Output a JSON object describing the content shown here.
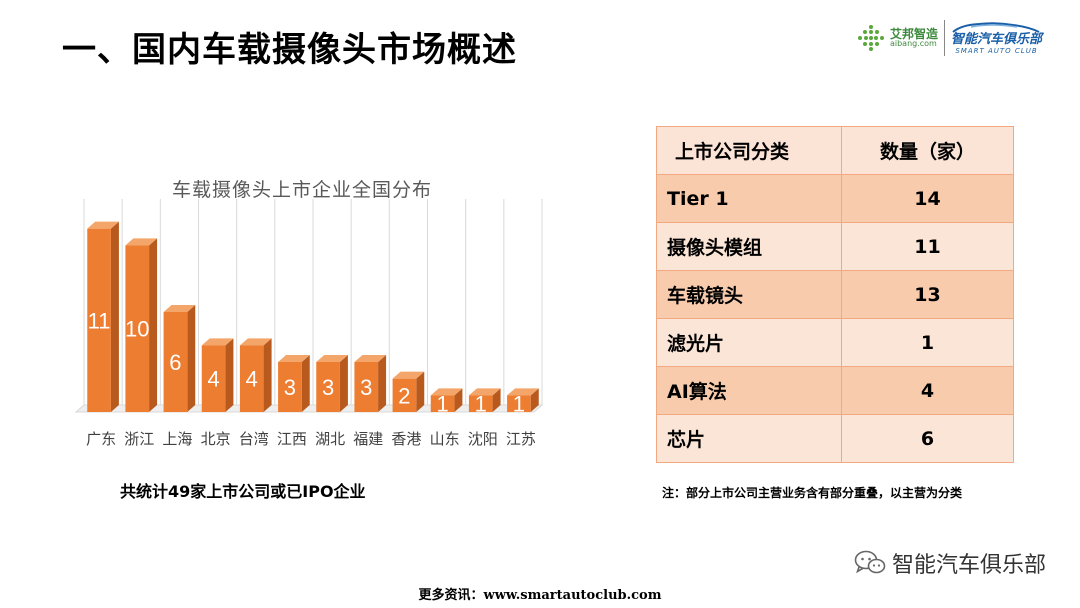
{
  "page": {
    "title": "一、国内车载摄像头市场概述",
    "summary": "共统计49家上市公司或已IPO企业",
    "note": "注：部分上市公司主营业务含有部分重叠，以主营为分类",
    "footer": "更多资讯：www.smartautoclub.com"
  },
  "logos": {
    "aibang_name": "艾邦智造",
    "aibang_url": "aibang.com",
    "club_name": "智能汽车俱乐部",
    "club_sub": "SMART AUTO CLUB"
  },
  "wechat": {
    "label": "智能汽车俱乐部",
    "icon": "wechat-icon"
  },
  "table": {
    "headers": [
      "上市公司分类",
      "数量（家）"
    ],
    "rows": [
      [
        "Tier 1",
        "14"
      ],
      [
        "摄像头模组",
        "11"
      ],
      [
        "车载镜头",
        "13"
      ],
      [
        "滤光片",
        "1"
      ],
      [
        "AI算法",
        "4"
      ],
      [
        "芯片",
        "6"
      ]
    ]
  },
  "chart_data": {
    "type": "bar",
    "title": "车载摄像头上市企业全国分布",
    "categories": [
      "广东",
      "浙江",
      "上海",
      "北京",
      "台湾",
      "江西",
      "湖北",
      "福建",
      "香港",
      "山东",
      "沈阳",
      "江苏"
    ],
    "values": [
      11,
      10,
      6,
      4,
      4,
      3,
      3,
      3,
      2,
      1,
      1,
      1
    ],
    "ylim": [
      0,
      12
    ],
    "grid": true,
    "legend": "none",
    "bar_color": "#ed7d31",
    "data_labels": true,
    "style": "3d"
  }
}
